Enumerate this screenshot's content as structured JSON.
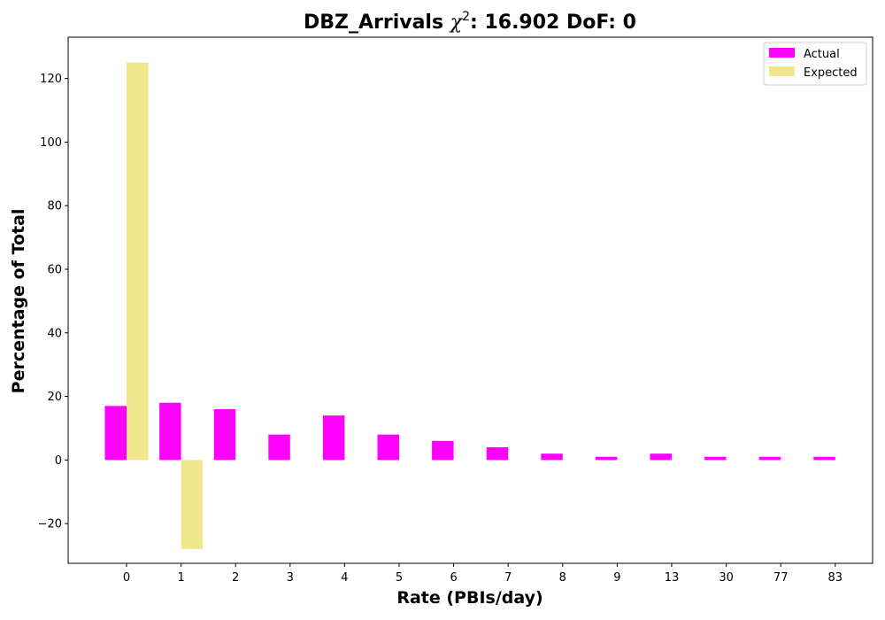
{
  "chart_data": {
    "type": "bar",
    "title": "DBZ_Arrivals χ²: 16.902 DoF: 0",
    "xlabel": "Rate (PBIs/day)",
    "ylabel": "Percentage of Total",
    "categories": [
      "0",
      "1",
      "2",
      "3",
      "4",
      "5",
      "6",
      "7",
      "8",
      "9",
      "13",
      "30",
      "77",
      "83"
    ],
    "series": [
      {
        "name": "Actual",
        "color": "#ff00ff",
        "values": [
          17,
          18,
          16,
          8,
          14,
          8,
          6,
          4,
          2,
          1,
          2,
          1,
          1,
          1
        ]
      },
      {
        "name": "Expected",
        "color": "#f0e68c",
        "values": [
          125,
          -28,
          null,
          null,
          null,
          null,
          null,
          null,
          null,
          null,
          null,
          null,
          null,
          null
        ]
      }
    ],
    "ylim": [
      -32.5,
      133
    ],
    "yticks": [
      -20,
      0,
      20,
      40,
      60,
      80,
      100,
      120
    ],
    "ytick_labels": [
      "−20",
      "0",
      "20",
      "40",
      "60",
      "80",
      "100",
      "120"
    ],
    "grid": false,
    "legend_position": "top-right"
  }
}
